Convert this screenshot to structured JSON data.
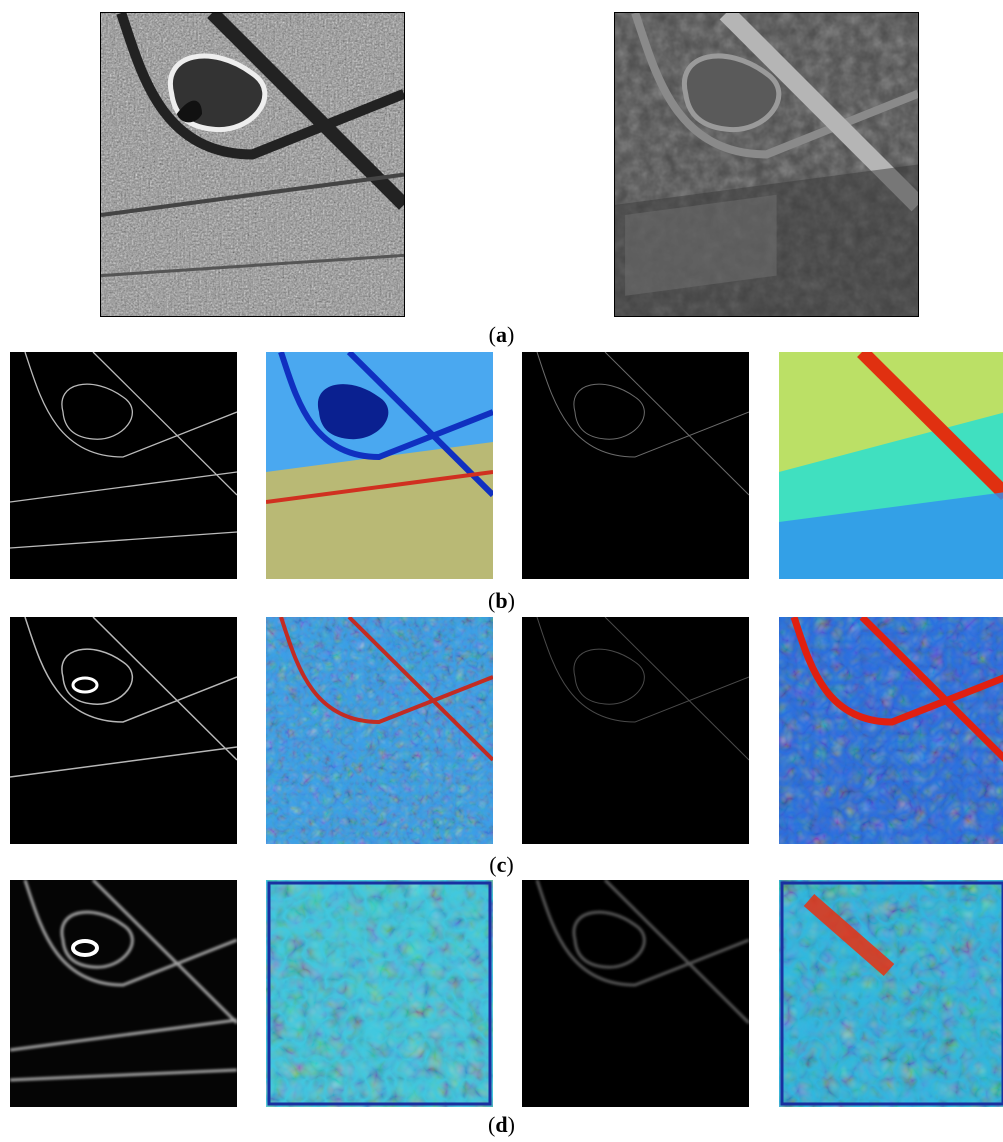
{
  "figure": {
    "row_labels": [
      {
        "letter": "a"
      },
      {
        "letter": "b"
      },
      {
        "letter": "c"
      },
      {
        "letter": "d"
      }
    ]
  }
}
